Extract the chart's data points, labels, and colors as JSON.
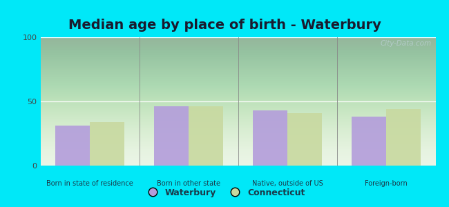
{
  "title": "Median age by place of birth - Waterbury",
  "categories": [
    "Born in state of residence",
    "Born in other state",
    "Native, outside of US",
    "Foreign-born"
  ],
  "waterbury_values": [
    31,
    46,
    43,
    38
  ],
  "connecticut_values": [
    34,
    46,
    41,
    44
  ],
  "waterbury_color": "#b39ddb",
  "connecticut_color": "#c8d9a0",
  "ylim": [
    0,
    100
  ],
  "yticks": [
    0,
    50,
    100
  ],
  "background_outer": "#00e8f8",
  "legend_waterbury": "Waterbury",
  "legend_connecticut": "Connecticut",
  "title_fontsize": 14,
  "bar_width": 0.35,
  "watermark": "City-Data.com"
}
